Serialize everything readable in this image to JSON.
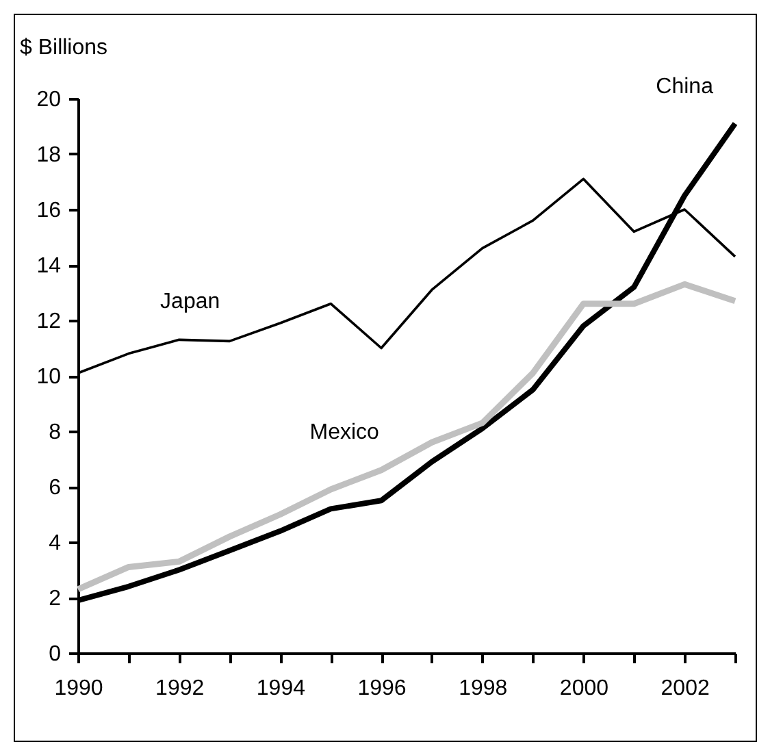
{
  "chart_data": {
    "type": "line",
    "ylabel": "$ Billions",
    "x": [
      1990,
      1991,
      1992,
      1993,
      1994,
      1995,
      1996,
      1997,
      1998,
      1999,
      2000,
      2001,
      2002,
      2003
    ],
    "series": [
      {
        "name": "Japan",
        "color": "#000000",
        "values": [
          10.1,
          10.8,
          11.3,
          11.25,
          11.9,
          12.6,
          11.0,
          13.1,
          14.6,
          15.6,
          17.1,
          15.2,
          16.0,
          14.3
        ]
      },
      {
        "name": "China",
        "color": "#000000",
        "values": [
          1.9,
          2.4,
          3.0,
          3.7,
          4.4,
          5.2,
          5.5,
          6.9,
          8.1,
          9.5,
          11.8,
          13.2,
          16.5,
          19.1
        ]
      },
      {
        "name": "Mexico",
        "color": "#c0c0c0",
        "values": [
          2.3,
          3.1,
          3.3,
          4.2,
          5.0,
          5.9,
          6.6,
          7.6,
          8.3,
          10.1,
          12.6,
          12.6,
          13.3,
          12.7
        ]
      }
    ],
    "xlim": [
      1990,
      2003
    ],
    "xticks": [
      1990,
      {
        "value": 1991,
        "label": null
      },
      1992,
      {
        "value": 1993,
        "label": null
      },
      1994,
      {
        "value": 1995,
        "label": null
      },
      1996,
      {
        "value": 1997,
        "label": null
      },
      1998,
      {
        "value": 1999,
        "label": null
      },
      2000,
      {
        "value": 2001,
        "label": null
      },
      2002,
      {
        "value": 2003,
        "label": null
      }
    ],
    "ylim": [
      0,
      20
    ],
    "yticks": [
      0,
      2,
      4,
      6,
      8,
      10,
      12,
      14,
      16,
      18,
      20
    ],
    "grid": false,
    "marker": "none",
    "line_style": "solid"
  }
}
